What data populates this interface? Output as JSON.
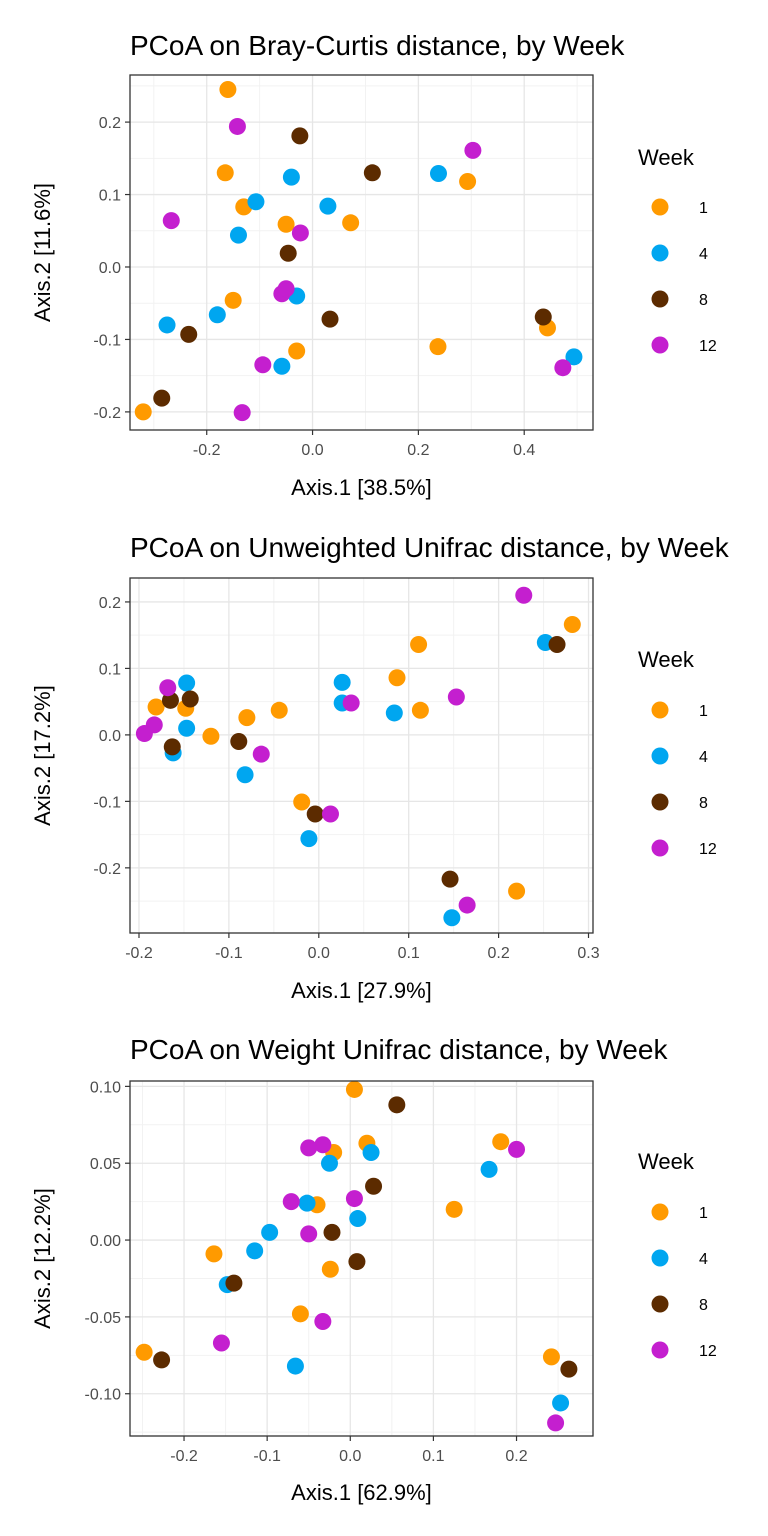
{
  "chart_data": [
    {
      "type": "scatter",
      "title": "PCoA on Bray-Curtis distance, by Week",
      "xlabel": "Axis.1   [38.5%]",
      "ylabel": "Axis.2   [11.6%]",
      "xlim": [
        -0.345,
        0.53
      ],
      "ylim": [
        -0.225,
        0.265
      ],
      "xticks": [
        -0.2,
        0.0,
        0.2,
        0.4
      ],
      "xtick_labels": [
        "-0.2",
        "0.0",
        "0.2",
        "0.4"
      ],
      "yticks": [
        -0.2,
        -0.1,
        0.0,
        0.1,
        0.2
      ],
      "ytick_labels": [
        "-0.2",
        "-0.1",
        "0.0",
        "0.1",
        "0.2"
      ],
      "legend_title": "Week",
      "legend_position": "right",
      "series": [
        {
          "name": "1",
          "color": "#FF9A00",
          "points": [
            [
              -0.16,
              0.245
            ],
            [
              -0.165,
              0.13
            ],
            [
              -0.13,
              0.083
            ],
            [
              -0.05,
              0.059
            ],
            [
              0.072,
              0.061
            ],
            [
              0.293,
              0.118
            ],
            [
              -0.15,
              -0.046
            ],
            [
              -0.03,
              -0.116
            ],
            [
              0.237,
              -0.11
            ],
            [
              -0.32,
              -0.2
            ],
            [
              0.444,
              -0.084
            ]
          ]
        },
        {
          "name": "4",
          "color": "#00A6F0",
          "points": [
            [
              -0.04,
              0.124
            ],
            [
              -0.107,
              0.09
            ],
            [
              0.029,
              0.084
            ],
            [
              0.238,
              0.129
            ],
            [
              -0.14,
              0.044
            ],
            [
              -0.03,
              -0.04
            ],
            [
              -0.18,
              -0.066
            ],
            [
              -0.275,
              -0.08
            ],
            [
              -0.058,
              -0.137
            ],
            [
              0.494,
              -0.124
            ]
          ]
        },
        {
          "name": "8",
          "color": "#5C2B00",
          "points": [
            [
              -0.024,
              0.181
            ],
            [
              0.113,
              0.13
            ],
            [
              -0.046,
              0.019
            ],
            [
              0.033,
              -0.072
            ],
            [
              -0.234,
              -0.093
            ],
            [
              0.436,
              -0.069
            ],
            [
              -0.285,
              -0.181
            ]
          ]
        },
        {
          "name": "12",
          "color": "#C41FCF",
          "points": [
            [
              -0.142,
              0.194
            ],
            [
              0.303,
              0.161
            ],
            [
              -0.267,
              0.064
            ],
            [
              -0.023,
              0.047
            ],
            [
              -0.058,
              -0.037
            ],
            [
              -0.05,
              -0.03
            ],
            [
              -0.094,
              -0.135
            ],
            [
              0.473,
              -0.139
            ],
            [
              -0.133,
              -0.201
            ]
          ]
        }
      ]
    },
    {
      "type": "scatter",
      "title": "PCoA on Unweighted Unifrac distance, by Week",
      "xlabel": "Axis.1   [27.9%]",
      "ylabel": "Axis.2   [17.2%]",
      "xlim": [
        -0.21,
        0.305
      ],
      "ylim": [
        -0.298,
        0.236
      ],
      "xticks": [
        -0.2,
        -0.1,
        0.0,
        0.1,
        0.2,
        0.3
      ],
      "xtick_labels": [
        "-0.2",
        "-0.1",
        "0.0",
        "0.1",
        "0.2",
        "0.3"
      ],
      "yticks": [
        -0.2,
        -0.1,
        0.0,
        0.1,
        0.2
      ],
      "ytick_labels": [
        "-0.2",
        "-0.1",
        "0.0",
        "0.1",
        "0.2"
      ],
      "legend_title": "Week",
      "legend_position": "right",
      "series": [
        {
          "name": "1",
          "color": "#FF9A00",
          "points": [
            [
              0.282,
              0.166
            ],
            [
              0.111,
              0.136
            ],
            [
              0.087,
              0.086
            ],
            [
              0.113,
              0.037
            ],
            [
              -0.044,
              0.037
            ],
            [
              -0.08,
              0.026
            ],
            [
              -0.181,
              0.042
            ],
            [
              -0.148,
              0.04
            ],
            [
              -0.12,
              -0.002
            ],
            [
              -0.019,
              -0.101
            ],
            [
              0.22,
              -0.235
            ]
          ]
        },
        {
          "name": "4",
          "color": "#00A6F0",
          "points": [
            [
              0.252,
              0.139
            ],
            [
              0.026,
              0.079
            ],
            [
              -0.147,
              0.078
            ],
            [
              0.026,
              0.048
            ],
            [
              0.084,
              0.033
            ],
            [
              -0.147,
              0.01
            ],
            [
              -0.162,
              -0.027
            ],
            [
              -0.082,
              -0.06
            ],
            [
              -0.011,
              -0.156
            ],
            [
              0.148,
              -0.275
            ]
          ]
        },
        {
          "name": "8",
          "color": "#5C2B00",
          "points": [
            [
              0.265,
              0.136
            ],
            [
              -0.143,
              0.054
            ],
            [
              -0.165,
              0.052
            ],
            [
              -0.163,
              -0.018
            ],
            [
              -0.089,
              -0.01
            ],
            [
              -0.004,
              -0.119
            ],
            [
              0.146,
              -0.217
            ]
          ]
        },
        {
          "name": "12",
          "color": "#C41FCF",
          "points": [
            [
              0.228,
              0.21
            ],
            [
              -0.168,
              0.071
            ],
            [
              0.153,
              0.057
            ],
            [
              0.036,
              0.048
            ],
            [
              -0.183,
              0.015
            ],
            [
              -0.194,
              0.002
            ],
            [
              -0.064,
              -0.029
            ],
            [
              0.013,
              -0.119
            ],
            [
              0.165,
              -0.256
            ]
          ]
        }
      ]
    },
    {
      "type": "scatter",
      "title": "PCoA on Weight Unifrac distance, by Week",
      "xlabel": "Axis.1   [62.9%]",
      "ylabel": "Axis.2   [12.2%]",
      "xlim": [
        -0.265,
        0.292
      ],
      "ylim": [
        -0.1275,
        0.1035
      ],
      "xticks": [
        -0.2,
        -0.1,
        0.0,
        0.1,
        0.2
      ],
      "xtick_labels": [
        "-0.2",
        "-0.1",
        "0.0",
        "0.1",
        "0.2"
      ],
      "yticks": [
        -0.1,
        -0.05,
        0.0,
        0.05,
        0.1
      ],
      "ytick_labels": [
        "-0.10",
        "-0.05",
        "0.00",
        "0.05",
        "0.10"
      ],
      "legend_title": "Week",
      "legend_position": "right",
      "series": [
        {
          "name": "1",
          "color": "#FF9A00",
          "points": [
            [
              0.005,
              0.098
            ],
            [
              0.181,
              0.064
            ],
            [
              0.02,
              0.063
            ],
            [
              -0.02,
              0.057
            ],
            [
              -0.04,
              0.023
            ],
            [
              0.125,
              0.02
            ],
            [
              -0.164,
              -0.009
            ],
            [
              -0.024,
              -0.019
            ],
            [
              -0.06,
              -0.048
            ],
            [
              -0.248,
              -0.073
            ],
            [
              0.242,
              -0.076
            ]
          ]
        },
        {
          "name": "4",
          "color": "#00A6F0",
          "points": [
            [
              0.025,
              0.057
            ],
            [
              -0.025,
              0.05
            ],
            [
              0.167,
              0.046
            ],
            [
              -0.052,
              0.024
            ],
            [
              0.009,
              0.014
            ],
            [
              -0.097,
              0.005
            ],
            [
              -0.115,
              -0.007
            ],
            [
              -0.148,
              -0.029
            ],
            [
              -0.066,
              -0.082
            ],
            [
              0.253,
              -0.106
            ]
          ]
        },
        {
          "name": "8",
          "color": "#5C2B00",
          "points": [
            [
              0.056,
              0.088
            ],
            [
              0.028,
              0.035
            ],
            [
              -0.022,
              0.005
            ],
            [
              0.008,
              -0.014
            ],
            [
              -0.14,
              -0.028
            ],
            [
              -0.227,
              -0.078
            ],
            [
              0.263,
              -0.084
            ]
          ]
        },
        {
          "name": "12",
          "color": "#C41FCF",
          "points": [
            [
              -0.033,
              0.062
            ],
            [
              -0.05,
              0.06
            ],
            [
              0.2,
              0.059
            ],
            [
              0.005,
              0.027
            ],
            [
              -0.071,
              0.025
            ],
            [
              -0.05,
              0.004
            ],
            [
              -0.033,
              -0.053
            ],
            [
              -0.155,
              -0.067
            ],
            [
              0.247,
              -0.119
            ]
          ]
        }
      ]
    }
  ]
}
